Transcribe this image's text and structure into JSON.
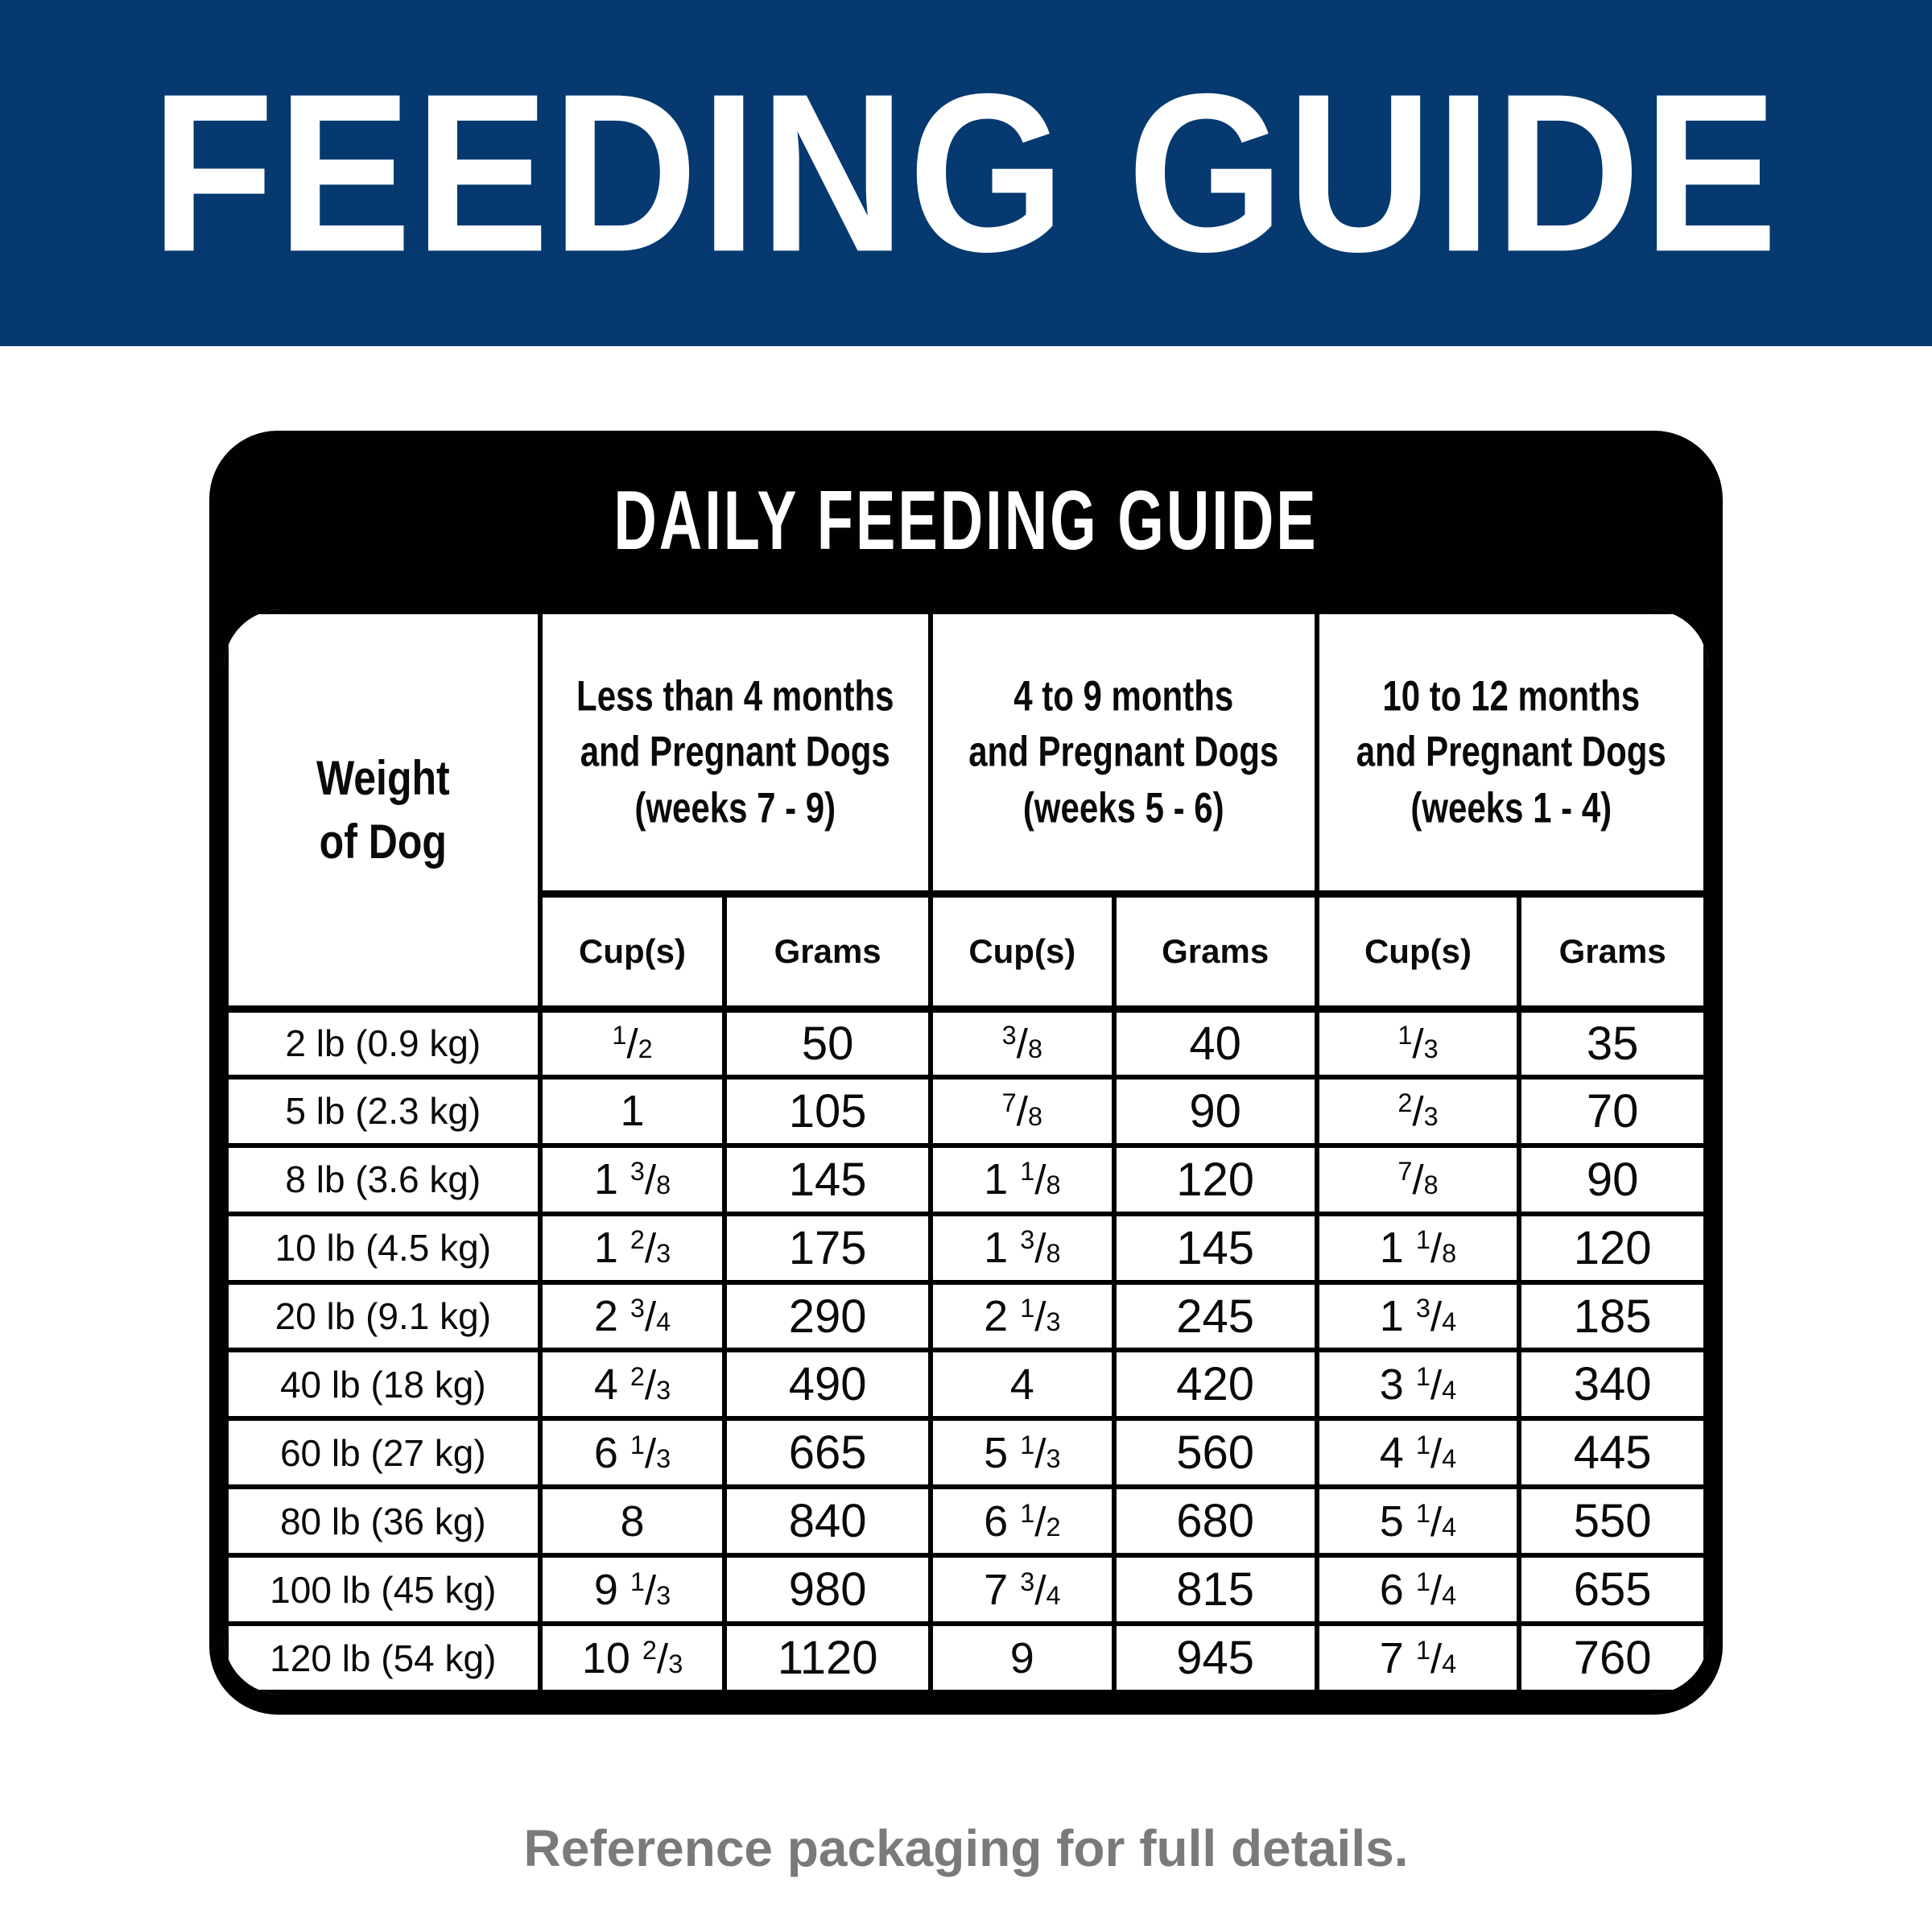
{
  "banner": {
    "title": "FEEDING GUIDE",
    "bg_color": "#053970",
    "text_color": "#ffffff"
  },
  "card": {
    "title": "DAILY FEEDING GUIDE",
    "bg_color": "#010101",
    "weight_header": "Weight\nof Dog",
    "groups": [
      {
        "label": "Less than 4 months\nand Pregnant Dogs\n(weeks 7 - 9)",
        "cups_label": "Cup(s)",
        "grams_label": "Grams"
      },
      {
        "label": "4 to 9 months\nand Pregnant Dogs\n(weeks 5 - 6)",
        "cups_label": "Cup(s)",
        "grams_label": "Grams"
      },
      {
        "label": "10 to 12 months\nand Pregnant Dogs\n(weeks 1 - 4)",
        "cups_label": "Cup(s)",
        "grams_label": "Grams"
      }
    ],
    "rows": [
      {
        "weight": "2 lb (0.9 kg)",
        "g1_cups": "1/2",
        "g1_grams": "50",
        "g2_cups": "3/8",
        "g2_grams": "40",
        "g3_cups": "1/3",
        "g3_grams": "35"
      },
      {
        "weight": "5 lb (2.3 kg)",
        "g1_cups": "1",
        "g1_grams": "105",
        "g2_cups": "7/8",
        "g2_grams": "90",
        "g3_cups": "2/3",
        "g3_grams": "70"
      },
      {
        "weight": "8 lb (3.6 kg)",
        "g1_cups": "1 3/8",
        "g1_grams": "145",
        "g2_cups": "1 1/8",
        "g2_grams": "120",
        "g3_cups": "7/8",
        "g3_grams": "90"
      },
      {
        "weight": "10 lb (4.5 kg)",
        "g1_cups": "1 2/3",
        "g1_grams": "175",
        "g2_cups": "1 3/8",
        "g2_grams": "145",
        "g3_cups": "1 1/8",
        "g3_grams": "120"
      },
      {
        "weight": "20 lb (9.1 kg)",
        "g1_cups": "2 3/4",
        "g1_grams": "290",
        "g2_cups": "2 1/3",
        "g2_grams": "245",
        "g3_cups": "1 3/4",
        "g3_grams": "185"
      },
      {
        "weight": "40 lb (18 kg)",
        "g1_cups": "4 2/3",
        "g1_grams": "490",
        "g2_cups": "4",
        "g2_grams": "420",
        "g3_cups": "3 1/4",
        "g3_grams": "340"
      },
      {
        "weight": "60 lb (27 kg)",
        "g1_cups": "6 1/3",
        "g1_grams": "665",
        "g2_cups": "5 1/3",
        "g2_grams": "560",
        "g3_cups": "4 1/4",
        "g3_grams": "445"
      },
      {
        "weight": "80 lb (36 kg)",
        "g1_cups": "8",
        "g1_grams": "840",
        "g2_cups": "6 1/2",
        "g2_grams": "680",
        "g3_cups": "5 1/4",
        "g3_grams": "550"
      },
      {
        "weight": "100 lb (45 kg)",
        "g1_cups": "9 1/3",
        "g1_grams": "980",
        "g2_cups": "7 3/4",
        "g2_grams": "815",
        "g3_cups": "6 1/4",
        "g3_grams": "655"
      },
      {
        "weight": "120 lb (54 kg)",
        "g1_cups": "10 2/3",
        "g1_grams": "1120",
        "g2_cups": "9",
        "g2_grams": "945",
        "g3_cups": "7 1/4",
        "g3_grams": "760"
      }
    ]
  },
  "footer": {
    "note": "Reference packaging for full details.",
    "text_color": "#7a7a7a"
  }
}
